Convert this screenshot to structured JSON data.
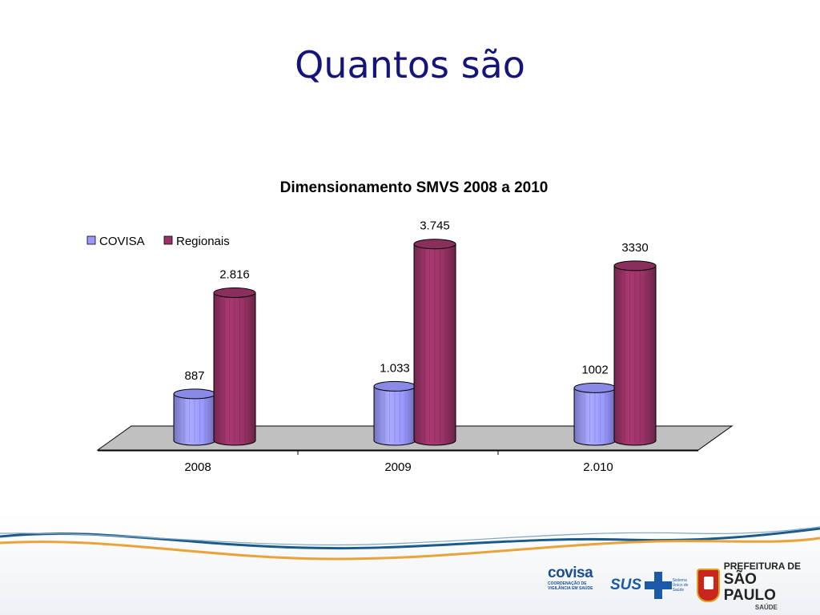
{
  "slide": {
    "title": "Quantos são"
  },
  "chart_data": {
    "type": "bar",
    "title": "Dimensionamento SMVS 2008 a 2010",
    "categories": [
      "2008",
      "2009",
      "2.010"
    ],
    "series": [
      {
        "name": "COVISA",
        "values": [
          887,
          1033,
          1002
        ],
        "labels": [
          "887",
          "1.033",
          "1002"
        ],
        "color": "#9999ff"
      },
      {
        "name": "Regionais",
        "values": [
          2816,
          3745,
          3330
        ],
        "labels": [
          "2.816",
          "3.745",
          "3330"
        ],
        "color": "#993366"
      }
    ],
    "ylim": [
      0,
      4000
    ],
    "grid": false,
    "legend": "top-left",
    "floor_color": "#c0c0c0",
    "style": "3d-cylinder"
  },
  "footer": {
    "wave_colors": [
      "#1c5a8a",
      "#e8a33a"
    ],
    "logos": {
      "covisa": {
        "name": "covisa",
        "subtitle": "COORDENAÇÃO DE VIGILÂNCIA EM SAÚDE"
      },
      "sus": {
        "name": "SUS",
        "subtitle": "Sistema Único de Saúde"
      },
      "pmsp": {
        "line1": "PREFEITURA DE",
        "line2": "SÃO PAULO",
        "line3": "SAÚDE"
      }
    }
  }
}
